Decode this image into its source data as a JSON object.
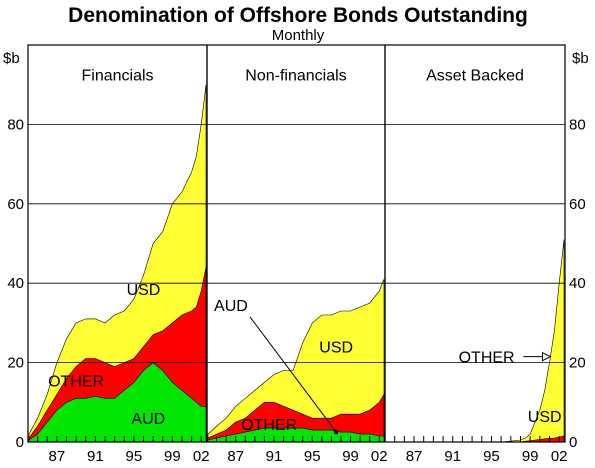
{
  "chart_data": {
    "type": "area",
    "title": "Denomination of Offshore Bonds Outstanding",
    "subtitle": "Monthly",
    "y_unit_left": "$b",
    "y_unit_right": "$b",
    "ylim": [
      0,
      100
    ],
    "yticks": [
      "0",
      "20",
      "40",
      "60",
      "80"
    ],
    "xlim": [
      1984,
      2002.6
    ],
    "xticks": [
      "87",
      "91",
      "95",
      "99",
      "02"
    ],
    "xtick_years": [
      1987,
      1991,
      1995,
      1999,
      2002
    ],
    "stacking": "AUD bottom, OTHER middle, USD top (cumulative totals listed)",
    "colors": {
      "AUD": "#00e600",
      "OTHER": "#ff0000",
      "USD": "#ffff33"
    },
    "panels": [
      {
        "name": "Financials",
        "x": [
          1984.1,
          1985,
          1986,
          1987,
          1988,
          1989,
          1990,
          1991,
          1992,
          1993,
          1994,
          1995,
          1996,
          1997,
          1998,
          1999,
          2000,
          2001,
          2001.5,
          2002,
          2002.5
        ],
        "series": [
          {
            "name": "AUD",
            "cumulative": [
              0.5,
              2,
              5,
              8,
              10,
              11,
              11,
              11.5,
              11,
              11,
              13,
              15,
              18,
              20,
              18,
              15,
              13,
              11,
              10,
              9,
              9
            ]
          },
          {
            "name": "OTHER",
            "cumulative": [
              1,
              4,
              8,
              12,
              16,
              19,
              21,
              21,
              20,
              19,
              20,
              21,
              24,
              27,
              28,
              30,
              32,
              33,
              34,
              38,
              44
            ]
          },
          {
            "name": "USD",
            "cumulative": [
              2,
              6,
              12,
              20,
              26,
              30,
              31,
              31,
              30,
              32,
              33,
              36,
              42,
              50,
              53,
              60,
              63,
              68,
              72,
              80,
              90
            ]
          }
        ]
      },
      {
        "name": "Non-financials",
        "x": [
          1984.1,
          1985,
          1986,
          1987,
          1988,
          1989,
          1990,
          1991,
          1992,
          1993,
          1994,
          1995,
          1996,
          1997,
          1998,
          1999,
          2000,
          2001,
          2002,
          2002.5
        ],
        "series": [
          {
            "name": "AUD",
            "cumulative": [
              0.5,
              1,
              1.5,
              2,
              2.5,
              3,
              3.5,
              3.5,
              3.5,
              3.5,
              3.5,
              3,
              3,
              3,
              2.5,
              2.5,
              2,
              2,
              1.5,
              1.5
            ]
          },
          {
            "name": "OTHER",
            "cumulative": [
              1,
              2,
              3,
              5,
              6,
              8,
              10,
              10,
              9,
              8,
              7,
              6,
              6,
              6,
              7,
              7,
              7,
              8,
              10,
              12
            ]
          },
          {
            "name": "USD",
            "cumulative": [
              2,
              4,
              6,
              9,
              11,
              13,
              15,
              17,
              18,
              18,
              25,
              30,
              32,
              32,
              33,
              33,
              34,
              35,
              38,
              41
            ]
          }
        ]
      },
      {
        "name": "Asset Backed",
        "x": [
          1984.1,
          1996,
          1997,
          1998,
          1998.5,
          1999,
          1999.5,
          2000,
          2000.5,
          2001,
          2001.5,
          2002,
          2002.5
        ],
        "series": [
          {
            "name": "AUD",
            "cumulative": [
              0,
              0,
              0,
              0,
              0,
              0,
              0,
              0,
              0,
              0,
              0,
              0,
              0
            ]
          },
          {
            "name": "OTHER",
            "cumulative": [
              0,
              0,
              0,
              0,
              0.2,
              0.3,
              0.5,
              0.6,
              0.8,
              0.9,
              1,
              1.2,
              1.5
            ]
          },
          {
            "name": "USD",
            "cumulative": [
              0,
              0,
              0.2,
              0.5,
              1,
              2,
              5,
              8,
              13,
              20,
              28,
              40,
              51
            ]
          }
        ]
      }
    ],
    "annotations": [
      {
        "panel": 0,
        "text": "USD"
      },
      {
        "panel": 0,
        "text": "OTHER"
      },
      {
        "panel": 0,
        "text": "AUD"
      },
      {
        "panel": 1,
        "text": "AUD"
      },
      {
        "panel": 1,
        "text": "USD"
      },
      {
        "panel": 1,
        "text": "OTHER"
      },
      {
        "panel": 2,
        "text": "OTHER"
      },
      {
        "panel": 2,
        "text": "USD"
      }
    ]
  }
}
